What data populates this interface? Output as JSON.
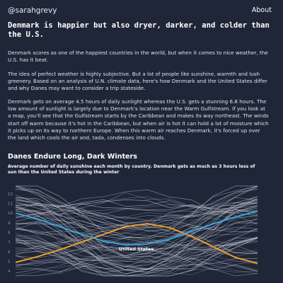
{
  "header": {
    "brand": "@sarahgrevy",
    "about_label": "About"
  },
  "article": {
    "headline": "Denmark is happier but also dryer, darker, and colder than the U.S.",
    "paragraphs": [
      "Denmark scores as one of the happiest countries in the world, but when it comes to nice weather, the U.S. has it beat.",
      "The idea of perfect weather is highly subjective. But a lot of people like sunshine, warmth and lush greenery. Based on an analysis of U.N. climate data, here's how Denmark and the United States differ and why Danes may want to consider a trip stateside.",
      "Denmark gets on average 4.5 hours of daily sunlight whereas the U.S. gets a stunning 6.8 hours. The low amount of sunlight is largely due to Denmark's location near the Warm Gulfstream. If you look at a map, you'll see that the Gulfstream starts by the Caribbean and makes its way northeast. The winds start off warm because it's hot in the Caribbean, but when air is hot it can hold a lot of moisture which it picks up on its way to northern Europe. When this warm air reaches Denmark, it's forced up over the land which cools the air and, tada, condenses into clouds."
    ]
  },
  "chart_data": {
    "type": "line",
    "title": "Danes Endure Long, Dark Winters",
    "subtitle": "Average number of daily sunshine each month by country. Denmark gets as much as 3 hours less of sun than the United States during the winter",
    "y_ticks": [
      12,
      11,
      10,
      9,
      8,
      7,
      6,
      5,
      4
    ],
    "ylim": [
      3.5,
      12.5
    ],
    "x": [
      1,
      2,
      3,
      4,
      5,
      6,
      7,
      8,
      9,
      10,
      11,
      12
    ],
    "annotation": "United States",
    "series": [
      {
        "label": "United States",
        "values": [
          4.9,
          5.5,
          6.2,
          7.0,
          7.8,
          8.6,
          8.9,
          8.5,
          7.6,
          6.5,
          5.4,
          4.8
        ],
        "color": "#f39c2b"
      },
      {
        "label": "",
        "values": [
          10.0,
          9.4,
          8.6,
          7.8,
          7.1,
          6.7,
          6.8,
          7.3,
          8.1,
          8.9,
          9.6,
          10.2
        ],
        "color": "#3aa6d9"
      }
    ]
  }
}
